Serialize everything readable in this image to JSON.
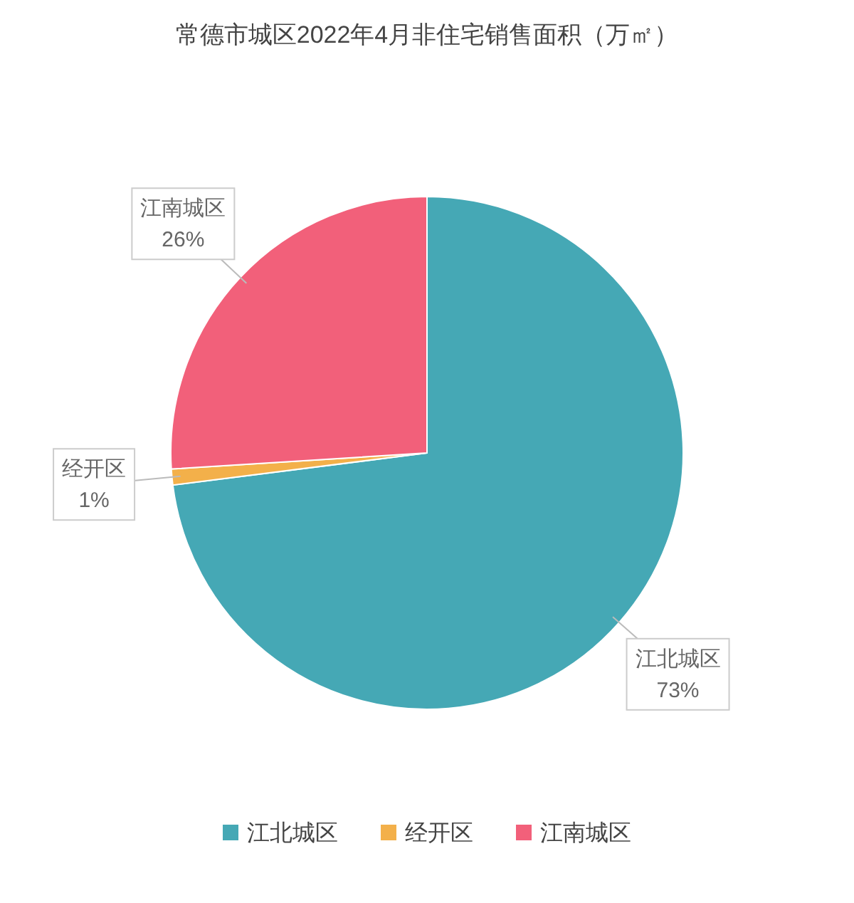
{
  "chart_data": {
    "type": "pie",
    "title": "常德市城区2022年4月非住宅销售面积（万㎡）",
    "categories": [
      "江北城区",
      "经开区",
      "江南城区"
    ],
    "values": [
      73,
      1,
      26
    ],
    "colors": [
      "#45a8b5",
      "#f3b04a",
      "#f2607a"
    ],
    "value_labels": [
      "73%",
      "1%",
      "26%"
    ],
    "legend": "bottom"
  }
}
